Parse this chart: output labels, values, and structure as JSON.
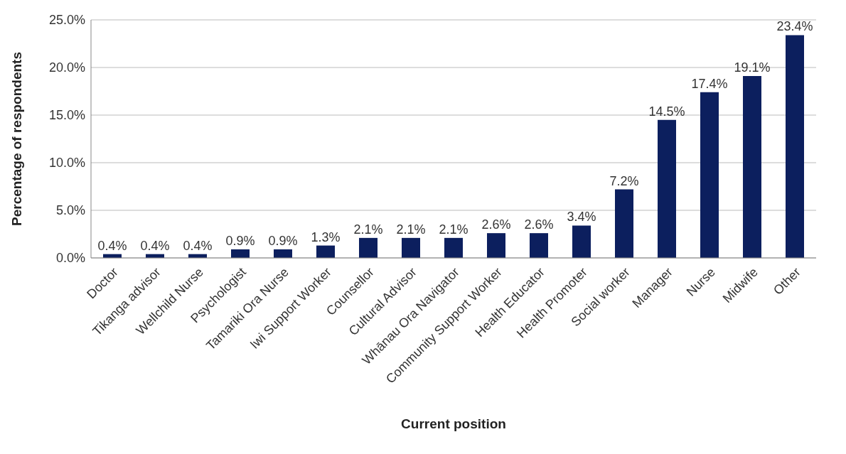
{
  "chart_data": {
    "type": "bar",
    "xlabel": "Current position",
    "ylabel": "Percentage of respondents",
    "categories": [
      "Doctor",
      "Tikanga advisor",
      "Wellchild Nurse",
      "Psychologist",
      "Tamariki Ora Nurse",
      "Iwi Support Worker",
      "Counsellor",
      "Cultural Advisor",
      "Whānau Ora Navigator",
      "Community Support Worker",
      "Health Educator",
      "Health Promoter",
      "Social worker",
      "Manager",
      "Nurse",
      "Midwife",
      "Other"
    ],
    "values": [
      0.4,
      0.4,
      0.4,
      0.9,
      0.9,
      1.3,
      2.1,
      2.1,
      2.1,
      2.6,
      2.6,
      3.4,
      7.2,
      14.5,
      17.4,
      19.1,
      23.4
    ],
    "value_labels": [
      "0.4%",
      "0.4%",
      "0.4%",
      "0.9%",
      "0.9%",
      "1.3%",
      "2.1%",
      "2.1%",
      "2.1%",
      "2.6%",
      "2.6%",
      "3.4%",
      "7.2%",
      "14.5%",
      "17.4%",
      "19.1%",
      "23.4%"
    ],
    "color": "#0c1f5e",
    "ylim": [
      0,
      25
    ],
    "yticks": [
      {
        "value": 0,
        "label": "0.0%"
      },
      {
        "value": 5,
        "label": "5.0%"
      },
      {
        "value": 10,
        "label": "10.0%"
      },
      {
        "value": 15,
        "label": "15.0%"
      },
      {
        "value": 20,
        "label": "20.0%"
      },
      {
        "value": 25,
        "label": "25.0%"
      }
    ],
    "grid": "y"
  }
}
